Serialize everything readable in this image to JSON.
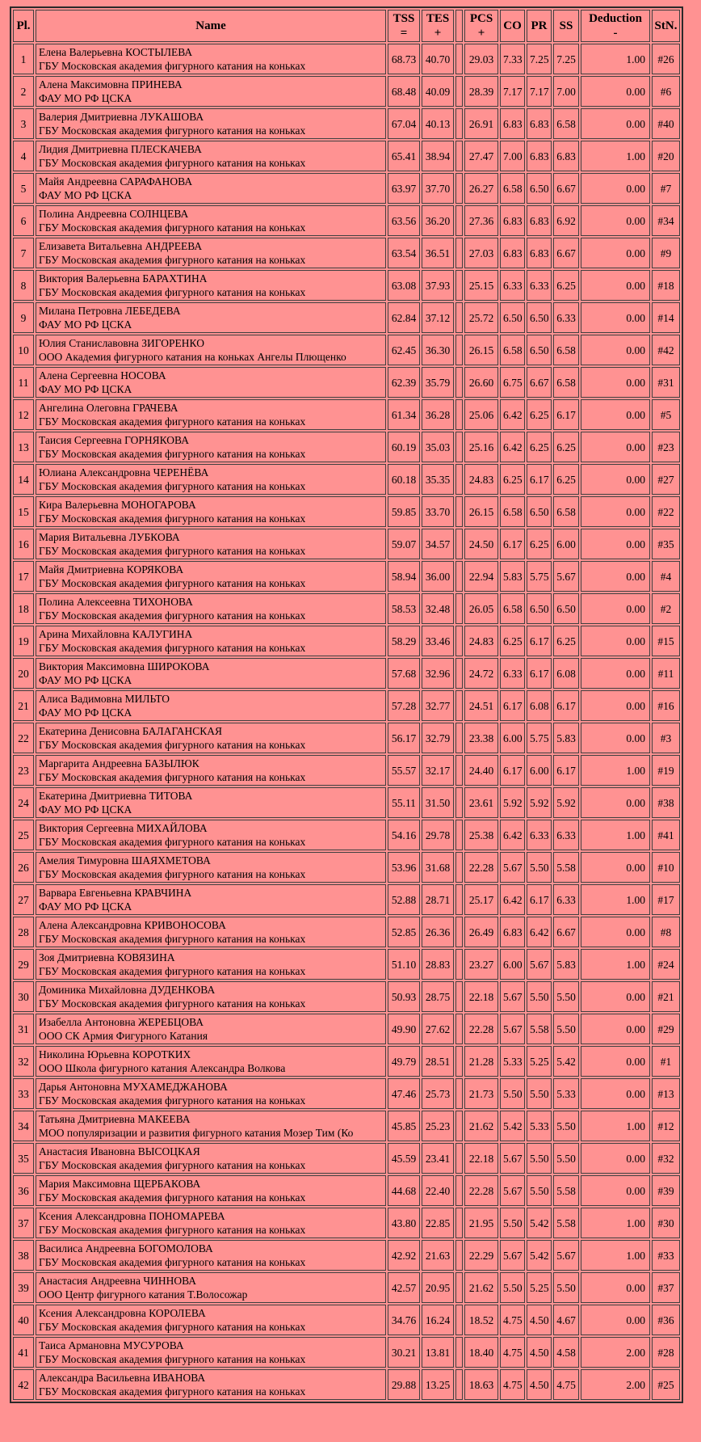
{
  "colors": {
    "page_background": "#FF9292",
    "cell_border": "#3f3f3f",
    "table_border": "#2a2a2a",
    "text": "#000000"
  },
  "table": {
    "columns": [
      {
        "id": "pl",
        "line1": "Pl.",
        "line2": ""
      },
      {
        "id": "name",
        "line1": "Name",
        "line2": ""
      },
      {
        "id": "tss",
        "line1": "TSS",
        "line2": "="
      },
      {
        "id": "tes",
        "line1": "TES",
        "line2": "+"
      },
      {
        "id": "spacer",
        "line1": "",
        "line2": ""
      },
      {
        "id": "pcs",
        "line1": "PCS",
        "line2": "+"
      },
      {
        "id": "co",
        "line1": "CO",
        "line2": ""
      },
      {
        "id": "pr",
        "line1": "PR",
        "line2": ""
      },
      {
        "id": "ss",
        "line1": "SS",
        "line2": ""
      },
      {
        "id": "ded",
        "line1": "Deduction",
        "line2": "-"
      },
      {
        "id": "stn",
        "line1": "StN.",
        "line2": ""
      }
    ],
    "rows": [
      {
        "pl": "1",
        "name": "Елена Валерьевна КОСТЫЛЕВА",
        "club": "ГБУ Московская академия фигурного катания на коньках",
        "tss": "68.73",
        "tes": "40.70",
        "pcs": "29.03",
        "co": "7.33",
        "pr": "7.25",
        "ss": "7.25",
        "ded": "1.00",
        "stn": "#26"
      },
      {
        "pl": "2",
        "name": "Алена Максимовна ПРИНЕВА",
        "club": "ФАУ МО РФ ЦСКА",
        "tss": "68.48",
        "tes": "40.09",
        "pcs": "28.39",
        "co": "7.17",
        "pr": "7.17",
        "ss": "7.00",
        "ded": "0.00",
        "stn": "#6"
      },
      {
        "pl": "3",
        "name": "Валерия Дмитриевна ЛУКАШОВА",
        "club": "ГБУ Московская академия фигурного катания на коньках",
        "tss": "67.04",
        "tes": "40.13",
        "pcs": "26.91",
        "co": "6.83",
        "pr": "6.83",
        "ss": "6.58",
        "ded": "0.00",
        "stn": "#40"
      },
      {
        "pl": "4",
        "name": "Лидия Дмитриевна ПЛЕСКАЧЕВА",
        "club": "ГБУ Московская академия фигурного катания на коньках",
        "tss": "65.41",
        "tes": "38.94",
        "pcs": "27.47",
        "co": "7.00",
        "pr": "6.83",
        "ss": "6.83",
        "ded": "1.00",
        "stn": "#20"
      },
      {
        "pl": "5",
        "name": "Майя Андреевна САРАФАНОВА",
        "club": "ФАУ МО РФ ЦСКА",
        "tss": "63.97",
        "tes": "37.70",
        "pcs": "26.27",
        "co": "6.58",
        "pr": "6.50",
        "ss": "6.67",
        "ded": "0.00",
        "stn": "#7"
      },
      {
        "pl": "6",
        "name": "Полина Андреевна СОЛНЦЕВА",
        "club": "ГБУ Московская академия фигурного катания на коньках",
        "tss": "63.56",
        "tes": "36.20",
        "pcs": "27.36",
        "co": "6.83",
        "pr": "6.83",
        "ss": "6.92",
        "ded": "0.00",
        "stn": "#34"
      },
      {
        "pl": "7",
        "name": "Елизавета Витальевна АНДРЕЕВА",
        "club": "ГБУ Московская академия фигурного катания на коньках",
        "tss": "63.54",
        "tes": "36.51",
        "pcs": "27.03",
        "co": "6.83",
        "pr": "6.83",
        "ss": "6.67",
        "ded": "0.00",
        "stn": "#9"
      },
      {
        "pl": "8",
        "name": "Виктория Валерьевна БАРАХТИНА",
        "club": "ГБУ Московская академия фигурного катания на коньках",
        "tss": "63.08",
        "tes": "37.93",
        "pcs": "25.15",
        "co": "6.33",
        "pr": "6.33",
        "ss": "6.25",
        "ded": "0.00",
        "stn": "#18"
      },
      {
        "pl": "9",
        "name": "Милана Петровна ЛЕБЕДЕВА",
        "club": "ФАУ МО РФ ЦСКА",
        "tss": "62.84",
        "tes": "37.12",
        "pcs": "25.72",
        "co": "6.50",
        "pr": "6.50",
        "ss": "6.33",
        "ded": "0.00",
        "stn": "#14"
      },
      {
        "pl": "10",
        "name": "Юлия Станиславовна ЗИГОРЕНКО",
        "club": "ООО Академия фигурного катания на коньках Ангелы Плющенко",
        "tss": "62.45",
        "tes": "36.30",
        "pcs": "26.15",
        "co": "6.58",
        "pr": "6.50",
        "ss": "6.58",
        "ded": "0.00",
        "stn": "#42"
      },
      {
        "pl": "11",
        "name": "Алена Сергеевна НОСОВА",
        "club": "ФАУ МО РФ ЦСКА",
        "tss": "62.39",
        "tes": "35.79",
        "pcs": "26.60",
        "co": "6.75",
        "pr": "6.67",
        "ss": "6.58",
        "ded": "0.00",
        "stn": "#31"
      },
      {
        "pl": "12",
        "name": "Ангелина Олеговна ГРАЧЕВА",
        "club": "ГБУ Московская академия фигурного катания на коньках",
        "tss": "61.34",
        "tes": "36.28",
        "pcs": "25.06",
        "co": "6.42",
        "pr": "6.25",
        "ss": "6.17",
        "ded": "0.00",
        "stn": "#5"
      },
      {
        "pl": "13",
        "name": "Таисия Сергеевна ГОРНЯКОВА",
        "club": "ГБУ Московская академия фигурного катания на коньках",
        "tss": "60.19",
        "tes": "35.03",
        "pcs": "25.16",
        "co": "6.42",
        "pr": "6.25",
        "ss": "6.25",
        "ded": "0.00",
        "stn": "#23"
      },
      {
        "pl": "14",
        "name": "Юлиана Александровна ЧЕРЕНЁВА",
        "club": "ГБУ Московская академия фигурного катания на коньках",
        "tss": "60.18",
        "tes": "35.35",
        "pcs": "24.83",
        "co": "6.25",
        "pr": "6.17",
        "ss": "6.25",
        "ded": "0.00",
        "stn": "#27"
      },
      {
        "pl": "15",
        "name": "Кира Валерьевна МОНОГАРОВА",
        "club": "ГБУ Московская академия фигурного катания на коньках",
        "tss": "59.85",
        "tes": "33.70",
        "pcs": "26.15",
        "co": "6.58",
        "pr": "6.50",
        "ss": "6.58",
        "ded": "0.00",
        "stn": "#22"
      },
      {
        "pl": "16",
        "name": "Мария Витальевна ЛУБКОВА",
        "club": "ГБУ Московская академия фигурного катания на коньках",
        "tss": "59.07",
        "tes": "34.57",
        "pcs": "24.50",
        "co": "6.17",
        "pr": "6.25",
        "ss": "6.00",
        "ded": "0.00",
        "stn": "#35"
      },
      {
        "pl": "17",
        "name": "Майя Дмитриевна КОРЯКОВА",
        "club": "ГБУ Московская академия фигурного катания на коньках",
        "tss": "58.94",
        "tes": "36.00",
        "pcs": "22.94",
        "co": "5.83",
        "pr": "5.75",
        "ss": "5.67",
        "ded": "0.00",
        "stn": "#4"
      },
      {
        "pl": "18",
        "name": "Полина Алексеевна ТИХОНОВА",
        "club": "ГБУ Московская академия фигурного катания на коньках",
        "tss": "58.53",
        "tes": "32.48",
        "pcs": "26.05",
        "co": "6.58",
        "pr": "6.50",
        "ss": "6.50",
        "ded": "0.00",
        "stn": "#2"
      },
      {
        "pl": "19",
        "name": "Арина Михайловна КАЛУГИНА",
        "club": "ГБУ Московская академия фигурного катания на коньках",
        "tss": "58.29",
        "tes": "33.46",
        "pcs": "24.83",
        "co": "6.25",
        "pr": "6.17",
        "ss": "6.25",
        "ded": "0.00",
        "stn": "#15"
      },
      {
        "pl": "20",
        "name": "Виктория Максимовна ШИРОКОВА",
        "club": "ФАУ МО РФ ЦСКА",
        "tss": "57.68",
        "tes": "32.96",
        "pcs": "24.72",
        "co": "6.33",
        "pr": "6.17",
        "ss": "6.08",
        "ded": "0.00",
        "stn": "#11"
      },
      {
        "pl": "21",
        "name": "Алиса Вадимовна МИЛЬТО",
        "club": "ФАУ МО РФ ЦСКА",
        "tss": "57.28",
        "tes": "32.77",
        "pcs": "24.51",
        "co": "6.17",
        "pr": "6.08",
        "ss": "6.17",
        "ded": "0.00",
        "stn": "#16"
      },
      {
        "pl": "22",
        "name": "Екатерина Денисовна БАЛАГАНСКАЯ",
        "club": "ГБУ Московская академия фигурного катания на коньках",
        "tss": "56.17",
        "tes": "32.79",
        "pcs": "23.38",
        "co": "6.00",
        "pr": "5.75",
        "ss": "5.83",
        "ded": "0.00",
        "stn": "#3"
      },
      {
        "pl": "23",
        "name": "Маргарита Андреевна БАЗЫЛЮК",
        "club": "ГБУ Московская академия фигурного катания на коньках",
        "tss": "55.57",
        "tes": "32.17",
        "pcs": "24.40",
        "co": "6.17",
        "pr": "6.00",
        "ss": "6.17",
        "ded": "1.00",
        "stn": "#19"
      },
      {
        "pl": "24",
        "name": "Екатерина Дмитриевна ТИТОВА",
        "club": "ФАУ МО РФ ЦСКА",
        "tss": "55.11",
        "tes": "31.50",
        "pcs": "23.61",
        "co": "5.92",
        "pr": "5.92",
        "ss": "5.92",
        "ded": "0.00",
        "stn": "#38"
      },
      {
        "pl": "25",
        "name": "Виктория Сергеевна МИХАЙЛОВА",
        "club": "ГБУ Московская академия фигурного катания на коньках",
        "tss": "54.16",
        "tes": "29.78",
        "pcs": "25.38",
        "co": "6.42",
        "pr": "6.33",
        "ss": "6.33",
        "ded": "1.00",
        "stn": "#41"
      },
      {
        "pl": "26",
        "name": "Амелия Тимуровна ШАЯХМЕТОВА",
        "club": "ГБУ Московская академия фигурного катания на коньках",
        "tss": "53.96",
        "tes": "31.68",
        "pcs": "22.28",
        "co": "5.67",
        "pr": "5.50",
        "ss": "5.58",
        "ded": "0.00",
        "stn": "#10"
      },
      {
        "pl": "27",
        "name": "Варвара Евгеньевна КРАВЧИНА",
        "club": "ФАУ МО РФ ЦСКА",
        "tss": "52.88",
        "tes": "28.71",
        "pcs": "25.17",
        "co": "6.42",
        "pr": "6.17",
        "ss": "6.33",
        "ded": "1.00",
        "stn": "#17"
      },
      {
        "pl": "28",
        "name": "Алена Александровна КРИВОНОСОВА",
        "club": "ГБУ Московская академия фигурного катания на коньках",
        "tss": "52.85",
        "tes": "26.36",
        "pcs": "26.49",
        "co": "6.83",
        "pr": "6.42",
        "ss": "6.67",
        "ded": "0.00",
        "stn": "#8"
      },
      {
        "pl": "29",
        "name": "Зоя Дмитриевна КОВЯЗИНА",
        "club": "ГБУ Московская академия фигурного катания на коньках",
        "tss": "51.10",
        "tes": "28.83",
        "pcs": "23.27",
        "co": "6.00",
        "pr": "5.67",
        "ss": "5.83",
        "ded": "1.00",
        "stn": "#24"
      },
      {
        "pl": "30",
        "name": "Доминика Михайловна ДУДЕНКОВА",
        "club": "ГБУ Московская академия фигурного катания на коньках",
        "tss": "50.93",
        "tes": "28.75",
        "pcs": "22.18",
        "co": "5.67",
        "pr": "5.50",
        "ss": "5.50",
        "ded": "0.00",
        "stn": "#21"
      },
      {
        "pl": "31",
        "name": "Изабелла Антоновна ЖЕРЕБЦОВА",
        "club": "ООО СК Армия Фигурного Катания",
        "tss": "49.90",
        "tes": "27.62",
        "pcs": "22.28",
        "co": "5.67",
        "pr": "5.58",
        "ss": "5.50",
        "ded": "0.00",
        "stn": "#29"
      },
      {
        "pl": "32",
        "name": "Николина Юрьевна КОРОТКИХ",
        "club": "ООО Школа фигурного катания Александра Волкова",
        "tss": "49.79",
        "tes": "28.51",
        "pcs": "21.28",
        "co": "5.33",
        "pr": "5.25",
        "ss": "5.42",
        "ded": "0.00",
        "stn": "#1"
      },
      {
        "pl": "33",
        "name": "Дарья Антоновна МУХАМЕДЖАНОВА",
        "club": "ГБУ Московская академия фигурного катания на коньках",
        "tss": "47.46",
        "tes": "25.73",
        "pcs": "21.73",
        "co": "5.50",
        "pr": "5.50",
        "ss": "5.33",
        "ded": "0.00",
        "stn": "#13"
      },
      {
        "pl": "34",
        "name": "Татьяна Дмитриевна МАКЕЕВА",
        "club": "МОО популяризации и развития фигурного катания Мозер Тим (Ко",
        "tss": "45.85",
        "tes": "25.23",
        "pcs": "21.62",
        "co": "5.42",
        "pr": "5.33",
        "ss": "5.50",
        "ded": "1.00",
        "stn": "#12"
      },
      {
        "pl": "35",
        "name": "Анастасия Ивановна ВЫСОЦКАЯ",
        "club": "ГБУ Московская академия фигурного катания на коньках",
        "tss": "45.59",
        "tes": "23.41",
        "pcs": "22.18",
        "co": "5.67",
        "pr": "5.50",
        "ss": "5.50",
        "ded": "0.00",
        "stn": "#32"
      },
      {
        "pl": "36",
        "name": "Мария Максимовна ЩЕРБАКОВА",
        "club": "ГБУ Московская академия фигурного катания на коньках",
        "tss": "44.68",
        "tes": "22.40",
        "pcs": "22.28",
        "co": "5.67",
        "pr": "5.50",
        "ss": "5.58",
        "ded": "0.00",
        "stn": "#39"
      },
      {
        "pl": "37",
        "name": "Ксения Александровна ПОНОМАРЕВА",
        "club": "ГБУ Московская академия фигурного катания на коньках",
        "tss": "43.80",
        "tes": "22.85",
        "pcs": "21.95",
        "co": "5.50",
        "pr": "5.42",
        "ss": "5.58",
        "ded": "1.00",
        "stn": "#30"
      },
      {
        "pl": "38",
        "name": "Василиса Андреевна БОГОМОЛОВА",
        "club": "ГБУ Московская академия фигурного катания на коньках",
        "tss": "42.92",
        "tes": "21.63",
        "pcs": "22.29",
        "co": "5.67",
        "pr": "5.42",
        "ss": "5.67",
        "ded": "1.00",
        "stn": "#33"
      },
      {
        "pl": "39",
        "name": "Анастасия Андреевна ЧИННОВА",
        "club": "ООО Центр фигурного катания Т.Волосожар",
        "tss": "42.57",
        "tes": "20.95",
        "pcs": "21.62",
        "co": "5.50",
        "pr": "5.25",
        "ss": "5.50",
        "ded": "0.00",
        "stn": "#37"
      },
      {
        "pl": "40",
        "name": "Ксения Александровна КОРОЛЕВА",
        "club": "ГБУ Московская академия фигурного катания на коньках",
        "tss": "34.76",
        "tes": "16.24",
        "pcs": "18.52",
        "co": "4.75",
        "pr": "4.50",
        "ss": "4.67",
        "ded": "0.00",
        "stn": "#36"
      },
      {
        "pl": "41",
        "name": "Таиса Армановна МУСУРОВА",
        "club": "ГБУ Московская академия фигурного катания на коньках",
        "tss": "30.21",
        "tes": "13.81",
        "pcs": "18.40",
        "co": "4.75",
        "pr": "4.50",
        "ss": "4.58",
        "ded": "2.00",
        "stn": "#28"
      },
      {
        "pl": "42",
        "name": "Александра Васильевна ИВАНОВА",
        "club": "ГБУ Московская академия фигурного катания на коньках",
        "tss": "29.88",
        "tes": "13.25",
        "pcs": "18.63",
        "co": "4.75",
        "pr": "4.50",
        "ss": "4.75",
        "ded": "2.00",
        "stn": "#25"
      }
    ]
  }
}
